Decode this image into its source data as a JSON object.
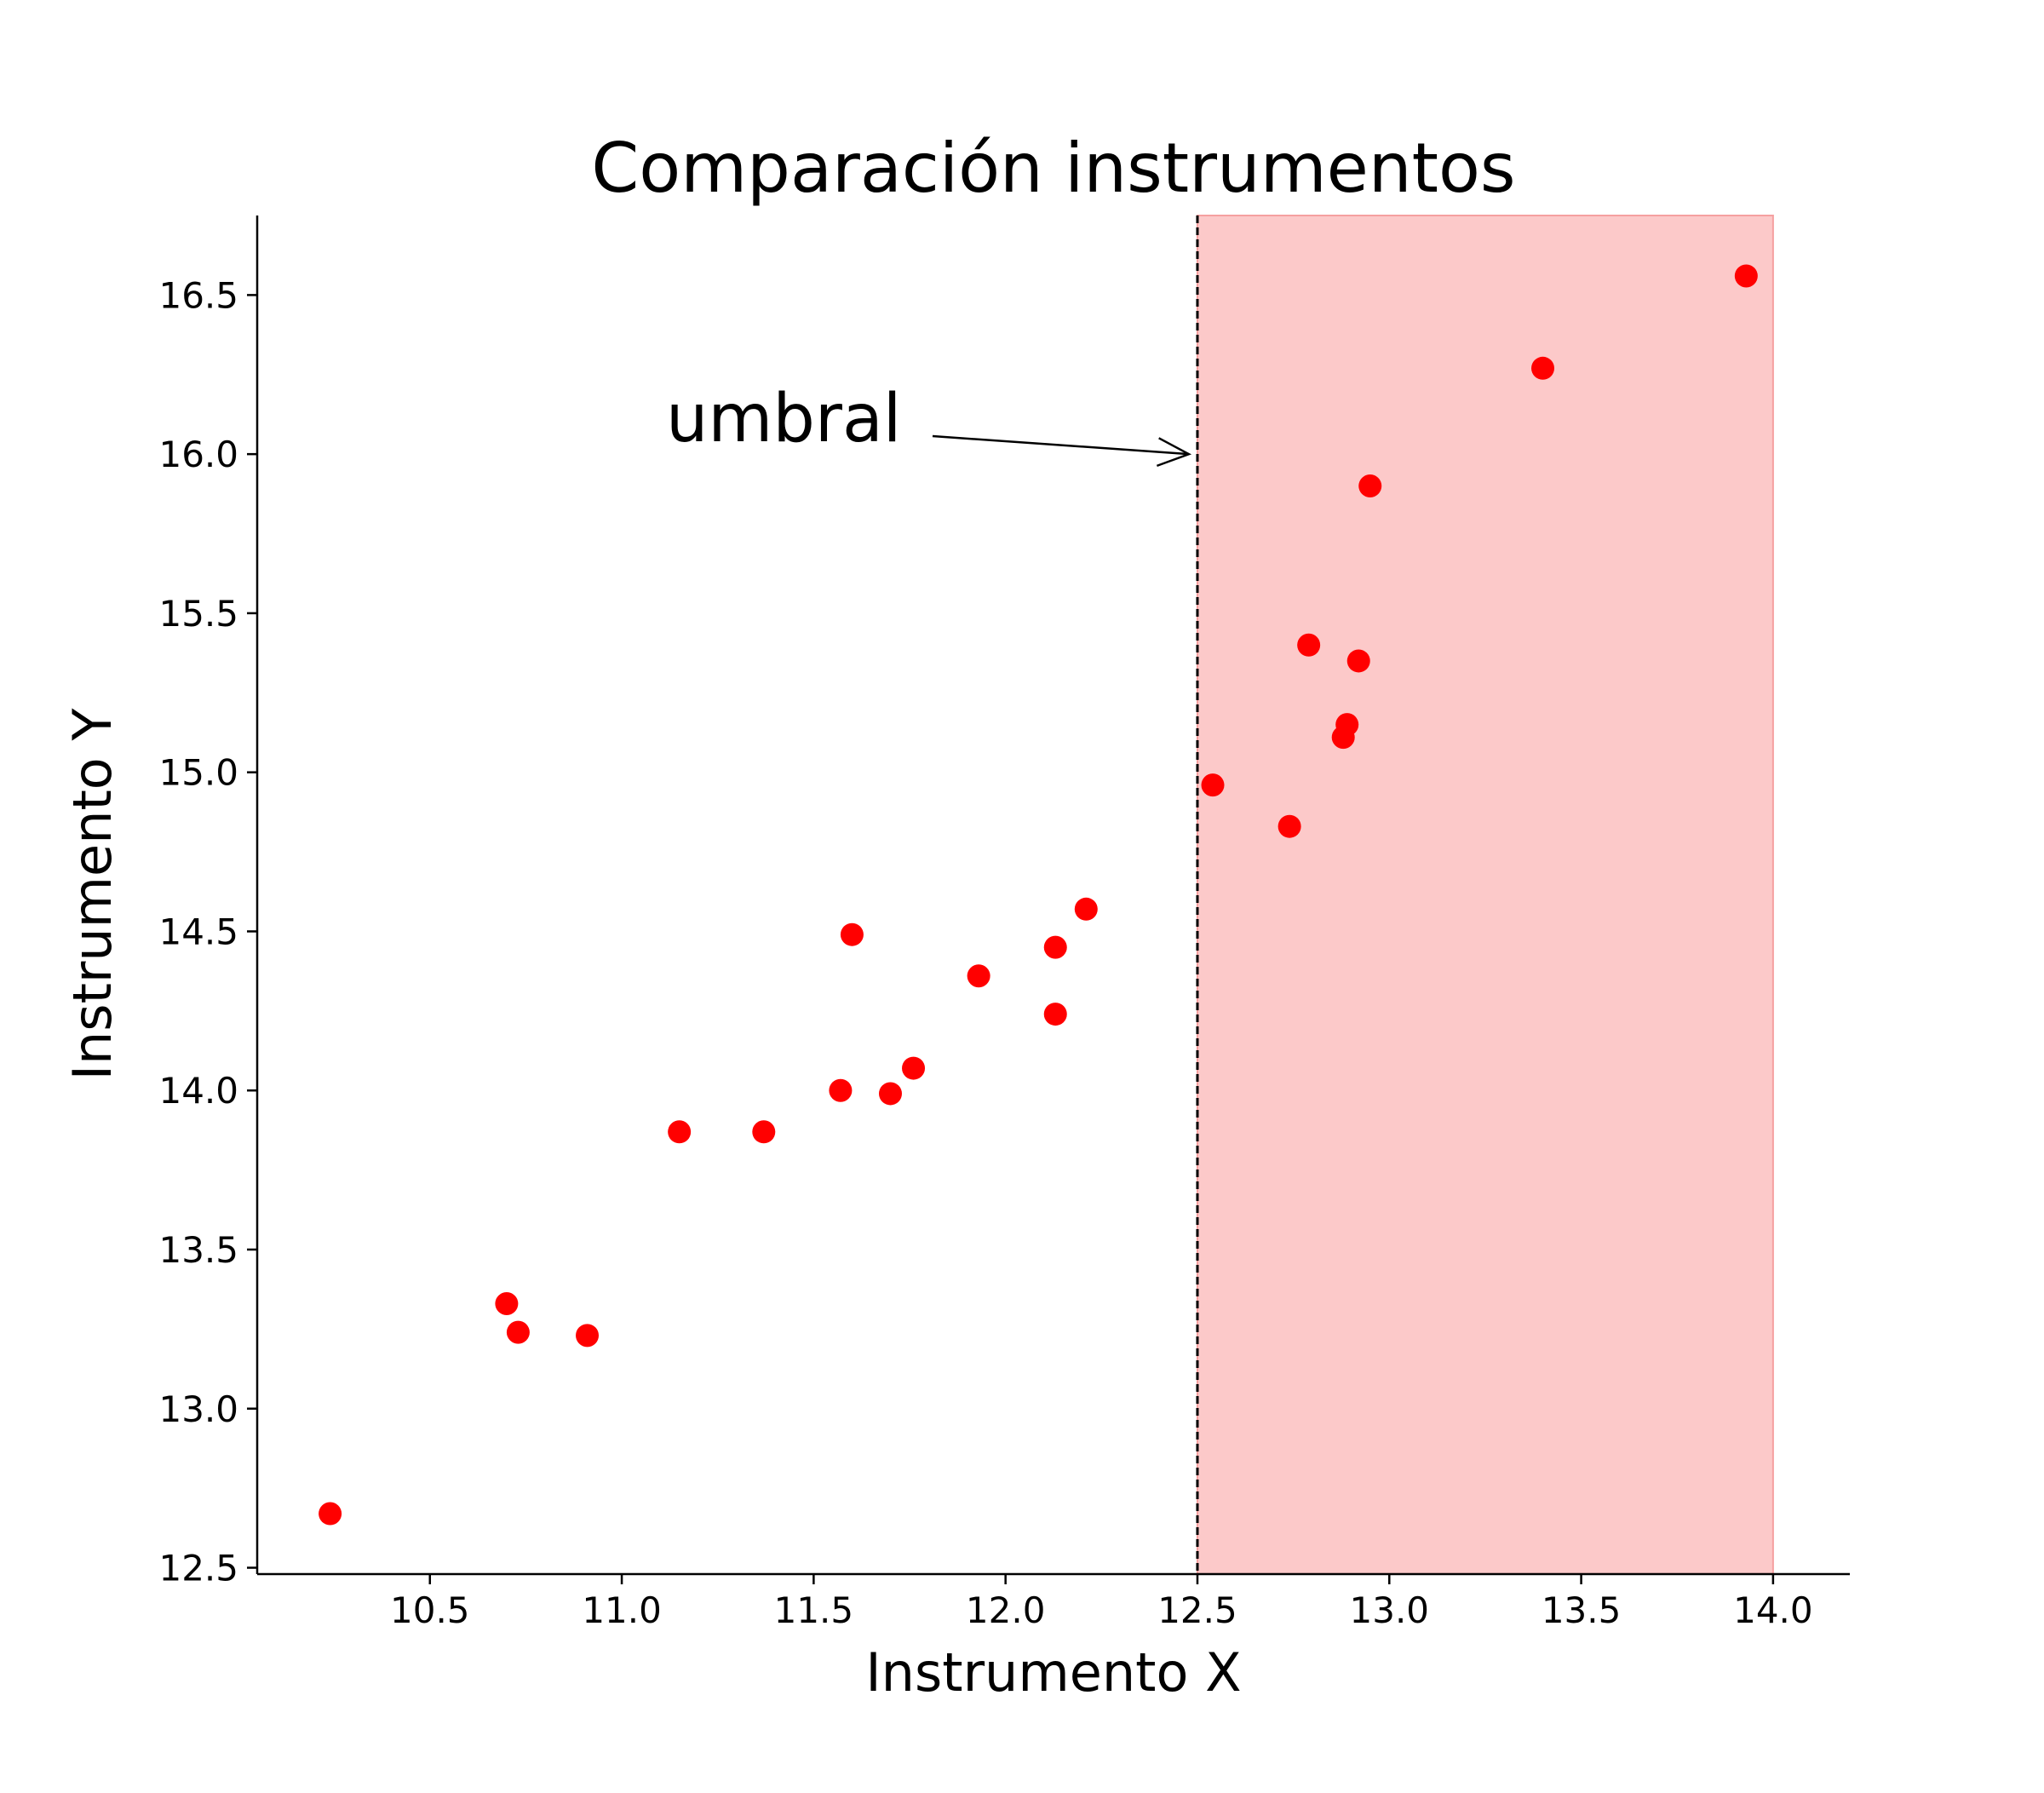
{
  "chart_data": {
    "type": "scatter",
    "title": "Comparación instrumentos",
    "xlabel": "Instrumento X",
    "ylabel": "Instrumento Y",
    "xlim": [
      10.05,
      14.2
    ],
    "ylim": [
      12.48,
      16.75
    ],
    "xticks": [
      10.5,
      11.0,
      11.5,
      12.0,
      12.5,
      13.0,
      13.5,
      14.0
    ],
    "yticks": [
      12.5,
      13.0,
      13.5,
      14.0,
      14.5,
      15.0,
      15.5,
      16.0,
      16.5
    ],
    "tick_labels_x": [
      "10.5",
      "11.0",
      "11.5",
      "12.0",
      "12.5",
      "13.0",
      "13.5",
      "14.0"
    ],
    "tick_labels_y": [
      "12.5",
      "13.0",
      "13.5",
      "14.0",
      "14.5",
      "15.0",
      "15.5",
      "16.0",
      "16.5"
    ],
    "grid": false,
    "points": [
      {
        "x": 10.24,
        "y": 12.67
      },
      {
        "x": 10.7,
        "y": 13.33
      },
      {
        "x": 10.73,
        "y": 13.24
      },
      {
        "x": 10.91,
        "y": 13.23
      },
      {
        "x": 11.15,
        "y": 13.87
      },
      {
        "x": 11.37,
        "y": 13.87
      },
      {
        "x": 11.57,
        "y": 14.0
      },
      {
        "x": 11.6,
        "y": 14.49
      },
      {
        "x": 11.7,
        "y": 13.99
      },
      {
        "x": 11.76,
        "y": 14.07
      },
      {
        "x": 11.93,
        "y": 14.36
      },
      {
        "x": 12.13,
        "y": 14.24
      },
      {
        "x": 12.13,
        "y": 14.45
      },
      {
        "x": 12.21,
        "y": 14.57
      },
      {
        "x": 12.54,
        "y": 14.96
      },
      {
        "x": 12.74,
        "y": 14.83
      },
      {
        "x": 12.79,
        "y": 15.4
      },
      {
        "x": 12.88,
        "y": 15.11
      },
      {
        "x": 12.89,
        "y": 15.15
      },
      {
        "x": 12.92,
        "y": 15.35
      },
      {
        "x": 12.95,
        "y": 15.9
      },
      {
        "x": 13.4,
        "y": 16.27
      },
      {
        "x": 13.93,
        "y": 16.56
      }
    ],
    "point_color": "#ff0000",
    "threshold": {
      "x": 12.5,
      "line_color": "#000000",
      "line_style": "dashed"
    },
    "shaded_region": {
      "x_start": 12.5,
      "x_end": 14.0,
      "color": "#fcc9c9",
      "edge_color": "#f5a0a0"
    },
    "annotation": {
      "text": "umbral",
      "target_x": 12.5,
      "target_y": 16.0,
      "text_x": 11.1,
      "text_y": 16.03
    }
  }
}
